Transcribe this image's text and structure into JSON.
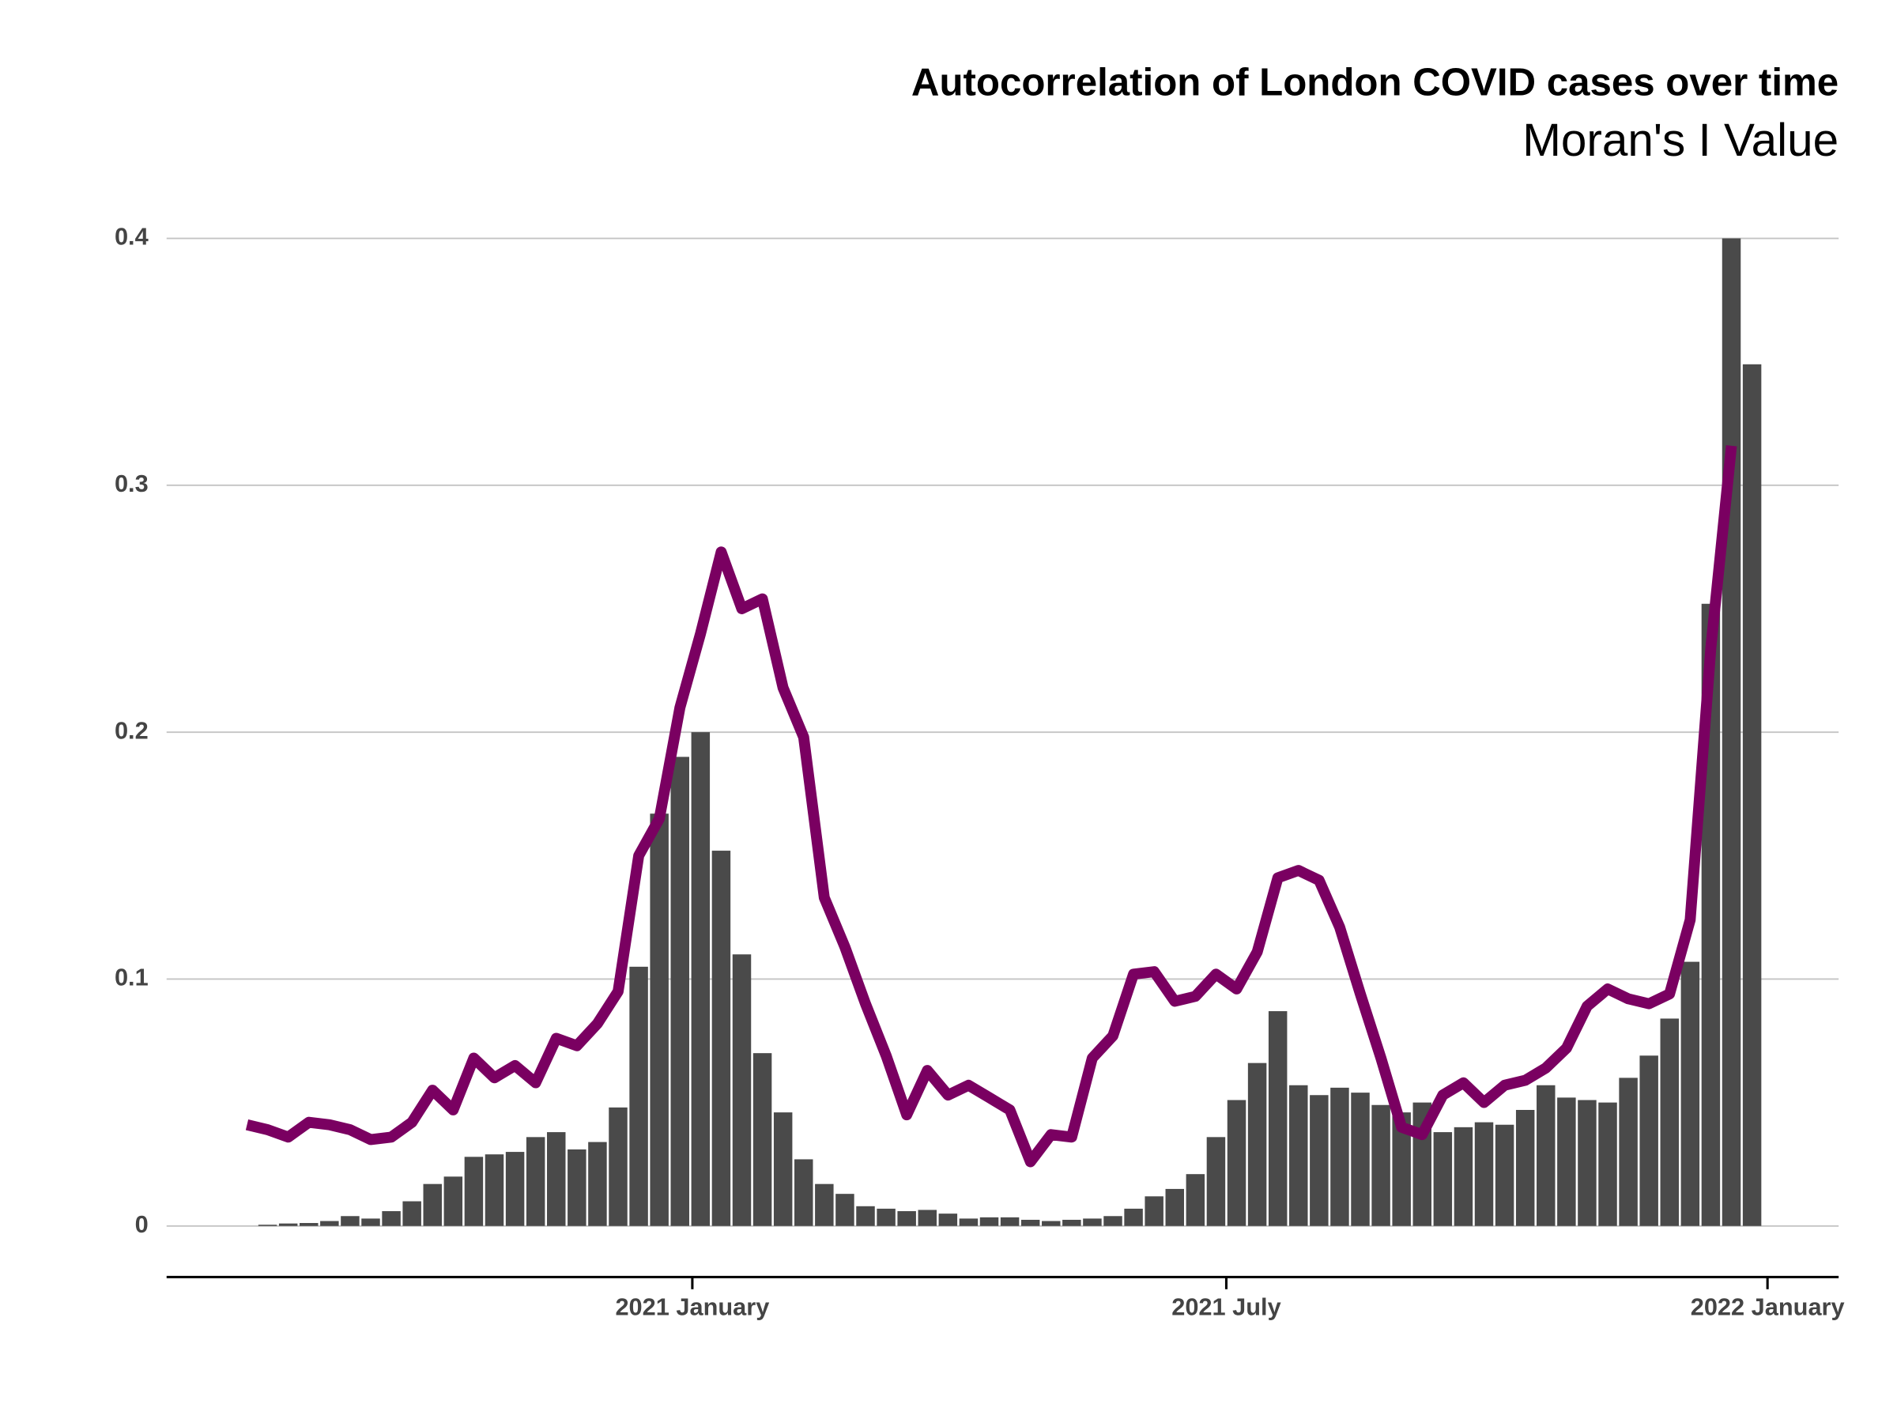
{
  "chart_data": {
    "type": "bar-line",
    "title": "Autocorrelation of London COVID cases over time",
    "subtitle": "Moran's I Value",
    "categories": [
      null,
      null,
      null,
      null,
      null,
      null,
      null,
      null,
      null,
      null,
      null,
      null,
      null,
      null,
      null,
      null,
      null,
      null,
      null,
      null,
      null,
      null,
      null,
      null,
      null,
      null,
      null,
      null,
      null,
      null,
      null,
      null,
      null,
      null,
      null,
      null,
      null,
      null,
      null,
      null,
      null,
      null,
      null,
      null,
      null,
      null,
      null,
      null,
      null,
      null,
      null,
      null,
      null,
      null,
      null,
      null,
      null,
      null,
      null,
      null,
      null,
      null,
      null,
      null,
      null,
      null,
      null,
      null,
      null,
      null,
      null,
      null,
      null,
      null
    ],
    "series": [
      {
        "type": "bar",
        "color": "#4a4a4a",
        "values": [
          0,
          0.0005,
          0.001,
          0.0012,
          0.002,
          0.004,
          0.003,
          0.006,
          0.01,
          0.017,
          0.02,
          0.028,
          0.029,
          0.03,
          0.036,
          0.038,
          0.031,
          0.034,
          0.048,
          0.105,
          0.167,
          0.19,
          0.2,
          0.152,
          0.11,
          0.07,
          0.046,
          0.027,
          0.017,
          0.013,
          0.008,
          0.007,
          0.006,
          0.0065,
          0.005,
          0.003,
          0.0035,
          0.0035,
          0.0025,
          0.002,
          0.0025,
          0.003,
          0.004,
          0.007,
          0.012,
          0.015,
          0.021,
          0.036,
          0.051,
          0.066,
          0.087,
          0.057,
          0.053,
          0.056,
          0.054,
          0.049,
          0.046,
          0.05,
          0.038,
          0.04,
          0.042,
          0.041,
          0.047,
          0.057,
          0.052,
          0.051,
          0.05,
          0.06,
          0.069,
          0.084,
          0.107,
          0.252,
          0.4,
          0.349
        ]
      },
      {
        "type": "line",
        "color": "#7a0061",
        "values": [
          0.041,
          0.039,
          0.036,
          0.042,
          0.041,
          0.039,
          0.035,
          0.036,
          0.042,
          0.055,
          0.047,
          0.068,
          0.06,
          0.065,
          0.058,
          0.076,
          0.073,
          0.082,
          0.095,
          0.15,
          0.165,
          0.21,
          0.24,
          0.273,
          0.25,
          0.254,
          0.218,
          0.198,
          0.133,
          0.113,
          0.09,
          0.069,
          0.045,
          0.063,
          0.053,
          0.057,
          0.052,
          0.047,
          0.026,
          0.037,
          0.036,
          0.068,
          0.077,
          0.102,
          0.103,
          0.091,
          0.093,
          0.102,
          0.096,
          0.111,
          0.141,
          0.144,
          0.14,
          0.121,
          0.094,
          0.068,
          0.04,
          0.037,
          0.053,
          0.058,
          0.05,
          0.057,
          0.059,
          0.064,
          0.072,
          0.089,
          0.096,
          0.092,
          0.09,
          0.094,
          0.124,
          0.234,
          0.316,
          null
        ]
      }
    ],
    "xlim": [
      -3.9,
      77.2
    ],
    "xticks": [
      {
        "value": 21.6,
        "label": "2021 January"
      },
      {
        "value": 47.5,
        "label": "2021 July"
      },
      {
        "value": 73.75,
        "label": "2022 January"
      }
    ],
    "ylim": [
      -0.02,
      0.41
    ],
    "yticks": [
      0.0,
      0.1,
      0.2,
      0.3,
      0.4
    ],
    "grid": true
  }
}
